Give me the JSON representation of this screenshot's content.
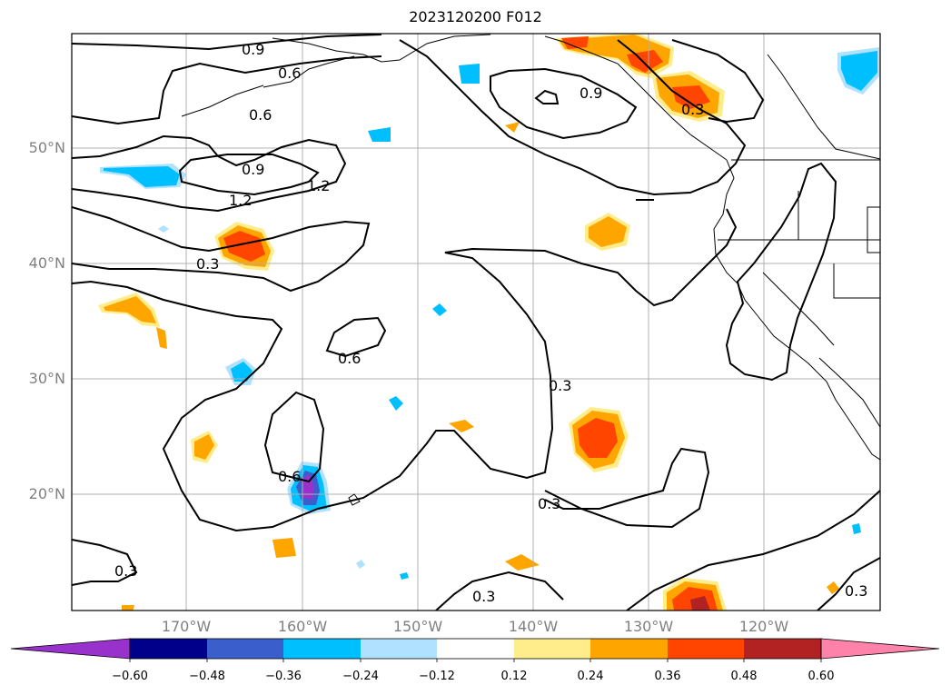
{
  "title": "2023120200 F012",
  "lat_labels": [
    "50°N",
    "40°N",
    "30°N",
    "20°N"
  ],
  "lon_labels": [
    "170°W",
    "160°W",
    "150°W",
    "140°W",
    "130°W",
    "120°W"
  ],
  "contour_labels": [
    "0.9",
    "0.6",
    "0.6",
    "0.9",
    "1.2",
    "1.2",
    "0.3",
    "0.9",
    "0.3",
    "0.6",
    "0.3",
    "0.6",
    "0.3",
    "0.3",
    "0.3",
    "0.3"
  ],
  "colorbar": {
    "ticks": [
      "−0.60",
      "−0.48",
      "−0.36",
      "−0.24",
      "−0.12",
      "0.12",
      "0.24",
      "0.36",
      "0.48",
      "0.60"
    ],
    "colors": [
      "#9932cc",
      "#00008b",
      "#3a5fcd",
      "#00bfff",
      "#b0e2ff",
      "#ffffff",
      "#ffec8b",
      "#ffa500",
      "#ff4500",
      "#b22222",
      "#ff82ab"
    ]
  }
}
